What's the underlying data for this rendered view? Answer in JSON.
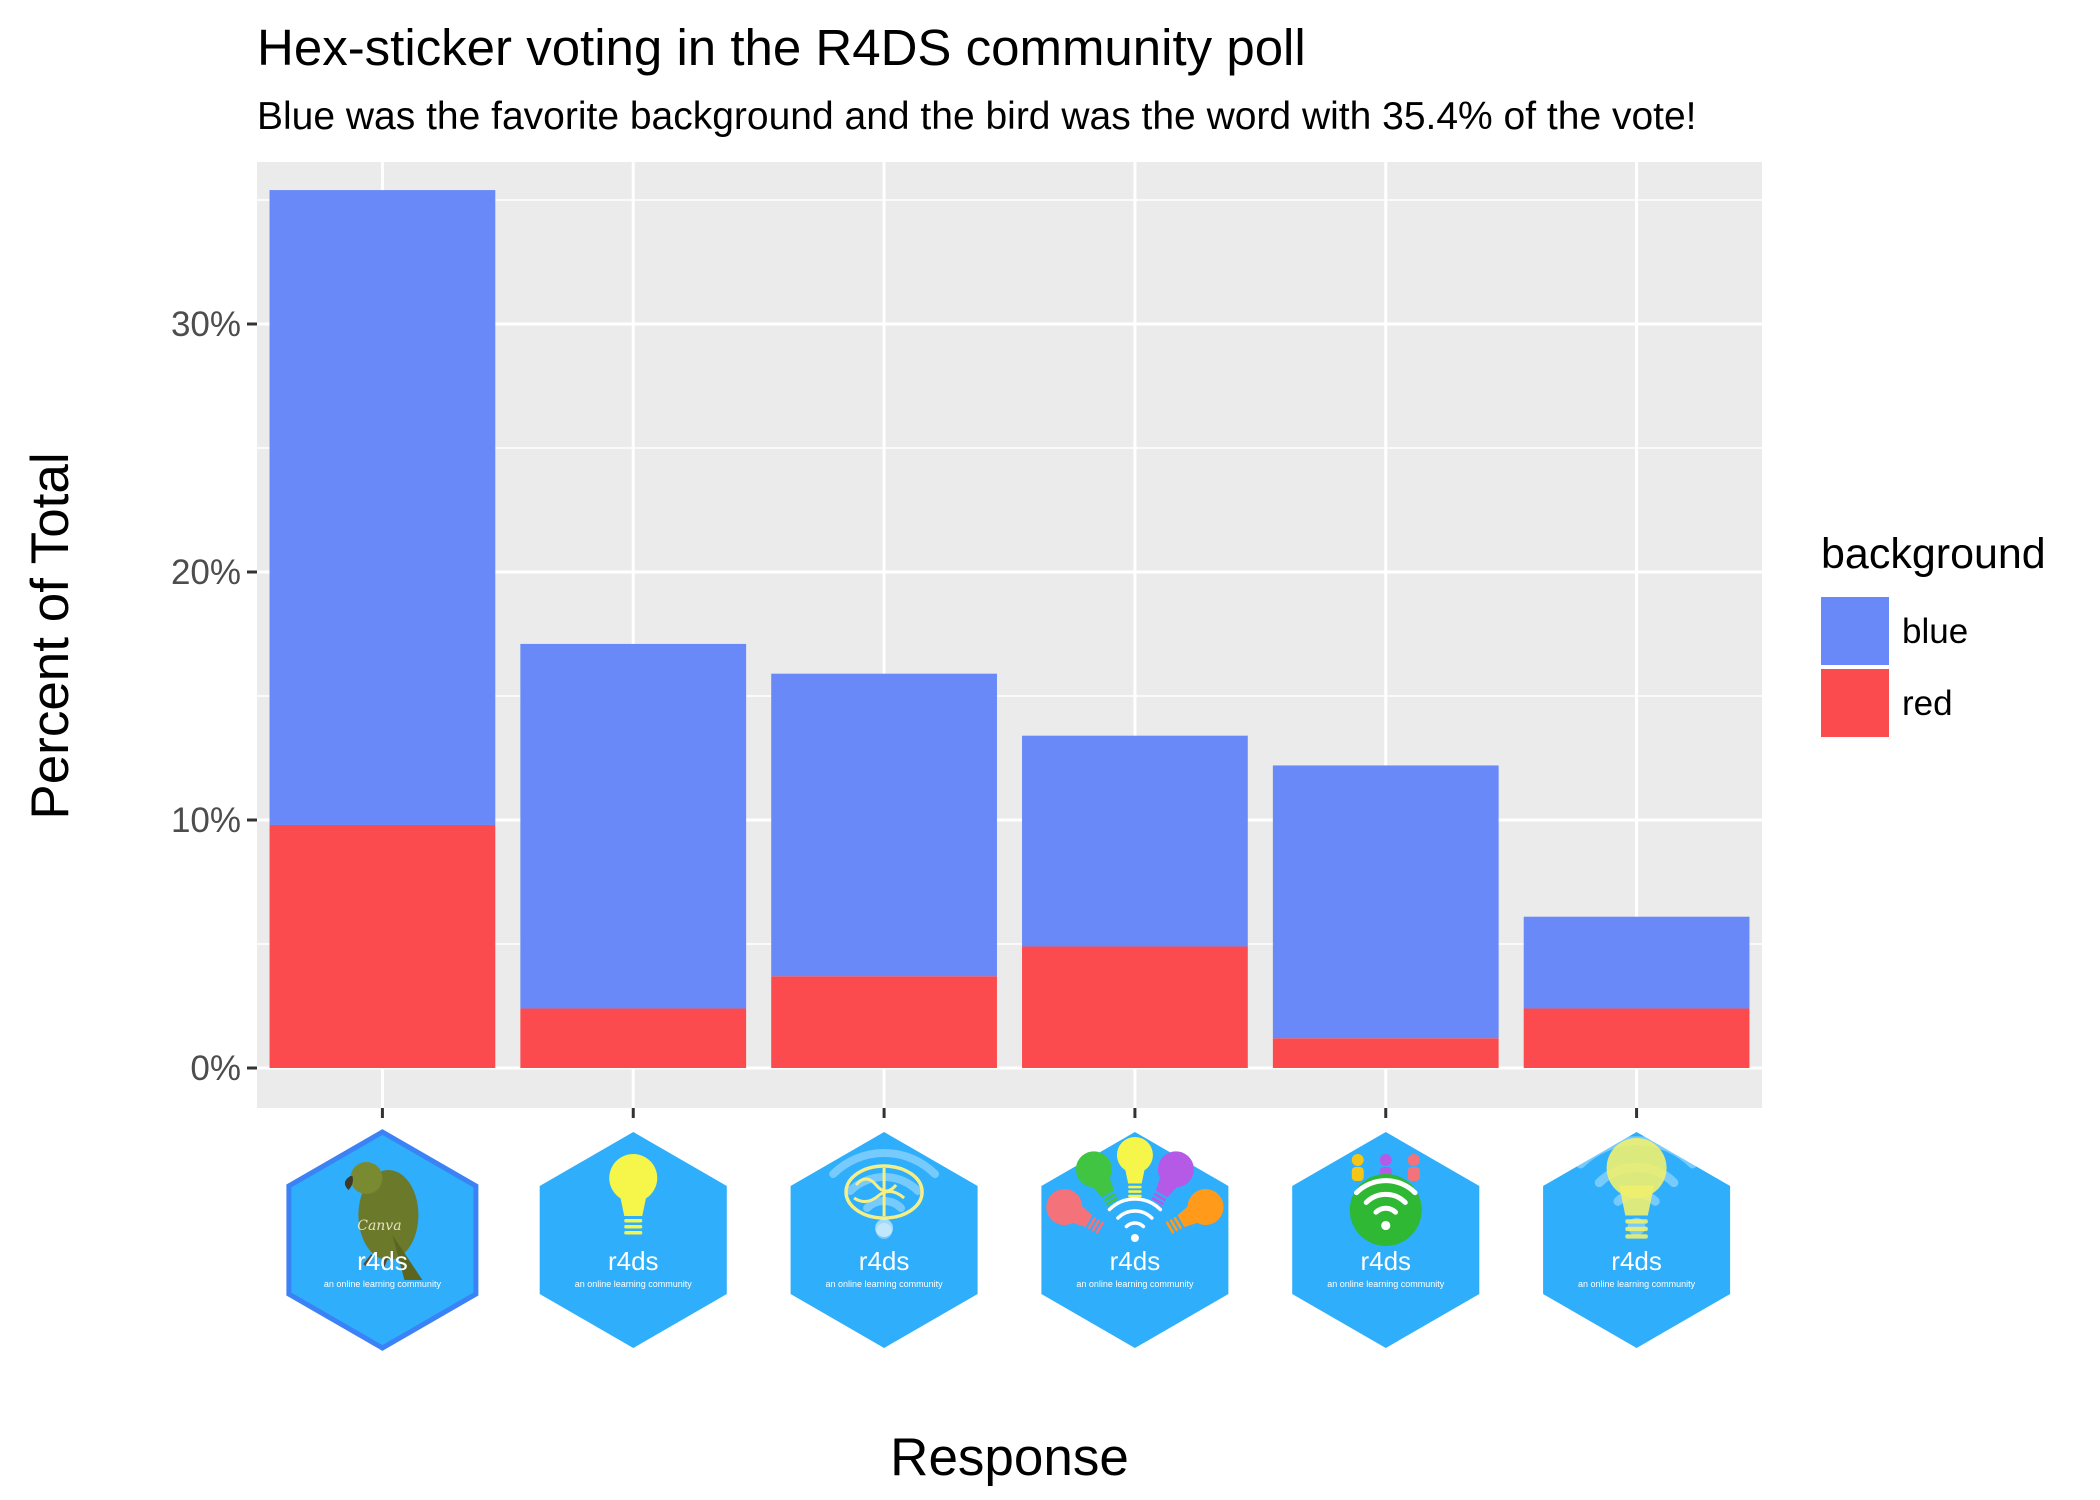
{
  "chart_data": {
    "type": "bar",
    "stacked": true,
    "title": "Hex-sticker voting in the R4DS community poll",
    "subtitle": "Blue was the favorite background and the bird was the word with 35.4% of the vote!",
    "xlabel": "Response",
    "ylabel": "Percent of Total",
    "ylim": [
      0,
      37.2
    ],
    "yticks": [
      0,
      10,
      20,
      30
    ],
    "ytick_labels": [
      "0%",
      "10%",
      "20%",
      "30%"
    ],
    "grid": true,
    "categories": [
      "bird",
      "lightbulb",
      "brain",
      "colorful lightbulbs",
      "wifi",
      "faded lightbulb"
    ],
    "series": [
      {
        "name": "red",
        "color": "#fb4b4e",
        "values": [
          9.8,
          2.4,
          3.7,
          4.9,
          1.2,
          2.4
        ]
      },
      {
        "name": "blue",
        "color": "#6889f7",
        "values": [
          25.6,
          14.7,
          12.2,
          8.5,
          11.0,
          3.7
        ]
      }
    ],
    "legend": {
      "title": "background",
      "position": "right",
      "entries": [
        {
          "label": "blue",
          "color": "#6889f7"
        },
        {
          "label": "red",
          "color": "#fb4b4e"
        }
      ]
    },
    "x_tick_images": [
      {
        "category": "bird",
        "label": "r4ds",
        "sublabel": "an online learning community",
        "icon": "parrot-icon",
        "watermark": "Canva"
      },
      {
        "category": "lightbulb",
        "label": "r4ds",
        "sublabel": "an online learning community",
        "icon": "lightbulb-icon"
      },
      {
        "category": "brain",
        "label": "r4ds",
        "sublabel": "an online learning community",
        "icon": "brain-icon"
      },
      {
        "category": "colorful lightbulbs",
        "label": "r4ds",
        "sublabel": "an online learning community",
        "icon": "colorful-lightbulbs-icon"
      },
      {
        "category": "wifi",
        "label": "r4ds",
        "sublabel": "an online learning community",
        "icon": "wifi-icon"
      },
      {
        "category": "faded lightbulb",
        "label": "r4ds",
        "sublabel": "an online learning community",
        "icon": "faded-lightbulb-icon"
      }
    ]
  },
  "colors": {
    "panel_background": "#ebebeb",
    "grid": "#ffffff",
    "hex_fill": "#2eaefb",
    "hex_border_selected": "#3b82f6"
  }
}
